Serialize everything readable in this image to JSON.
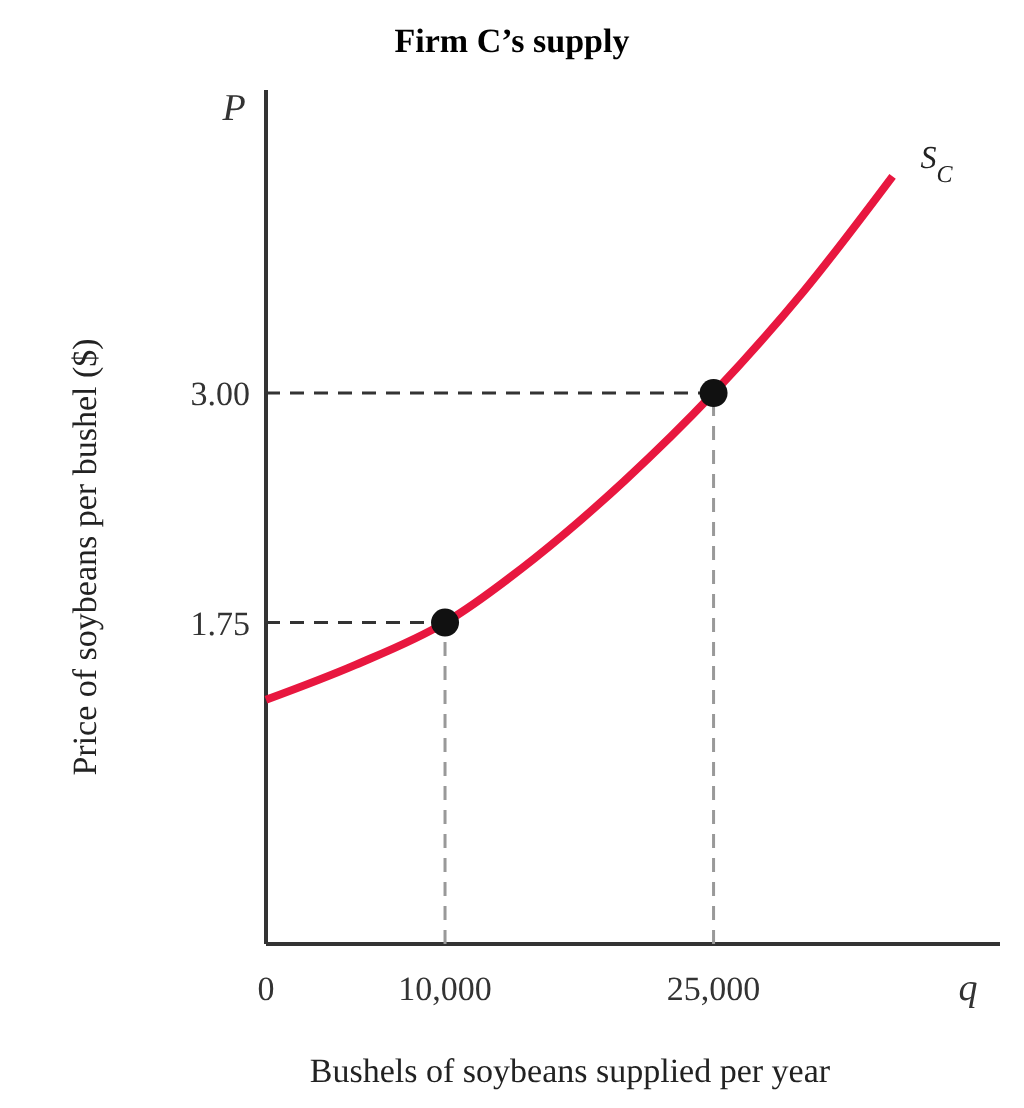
{
  "chart_data": {
    "type": "line",
    "title": "Firm C’s supply",
    "xlabel": "Bushels of soybeans supplied per year",
    "ylabel": "Price of soybeans per bushel ($)",
    "annotations": [
      "P",
      "q"
    ],
    "xlim": [
      0,
      41000
    ],
    "ylim": [
      0,
      4.65
    ],
    "xticks": [
      0,
      {
        "value": 10000,
        "label": "10,000"
      },
      {
        "value": 25000,
        "label": "25,000"
      }
    ],
    "yticks": [
      {
        "value": 1.75,
        "label": "1.75"
      },
      {
        "value": 3,
        "label": "3.00"
      }
    ],
    "series": [
      {
        "x": [
          0,
          10000
        ],
        "values": [
          1.75,
          1.75
        ],
        "color": "#333333",
        "line_style": "dashed"
      },
      {
        "x": [
          0,
          25000
        ],
        "values": [
          3.0,
          3.0
        ],
        "color": "#333333",
        "line_style": "dashed"
      },
      {
        "x": [
          10000,
          10000
        ],
        "values": [
          0,
          1.75
        ],
        "color": "#999999",
        "line_style": "dashed"
      },
      {
        "x": [
          25000,
          25000
        ],
        "values": [
          0,
          3.0
        ],
        "color": "#999999",
        "line_style": "dashed"
      },
      {
        "name": "S$_{C}$",
        "type": "line",
        "color": "#e8173f",
        "x": [
          0,
          5000,
          10000,
          15000,
          20000,
          25000,
          30000,
          35000
        ],
        "values": [
          1.33,
          1.52,
          1.75,
          2.1,
          2.52,
          3.0,
          3.55,
          4.18
        ]
      },
      {
        "type": "scatter",
        "color": "#111111",
        "marker": "circle",
        "x": [
          10000,
          25000
        ],
        "values": [
          1.75,
          3.0
        ]
      }
    ]
  }
}
